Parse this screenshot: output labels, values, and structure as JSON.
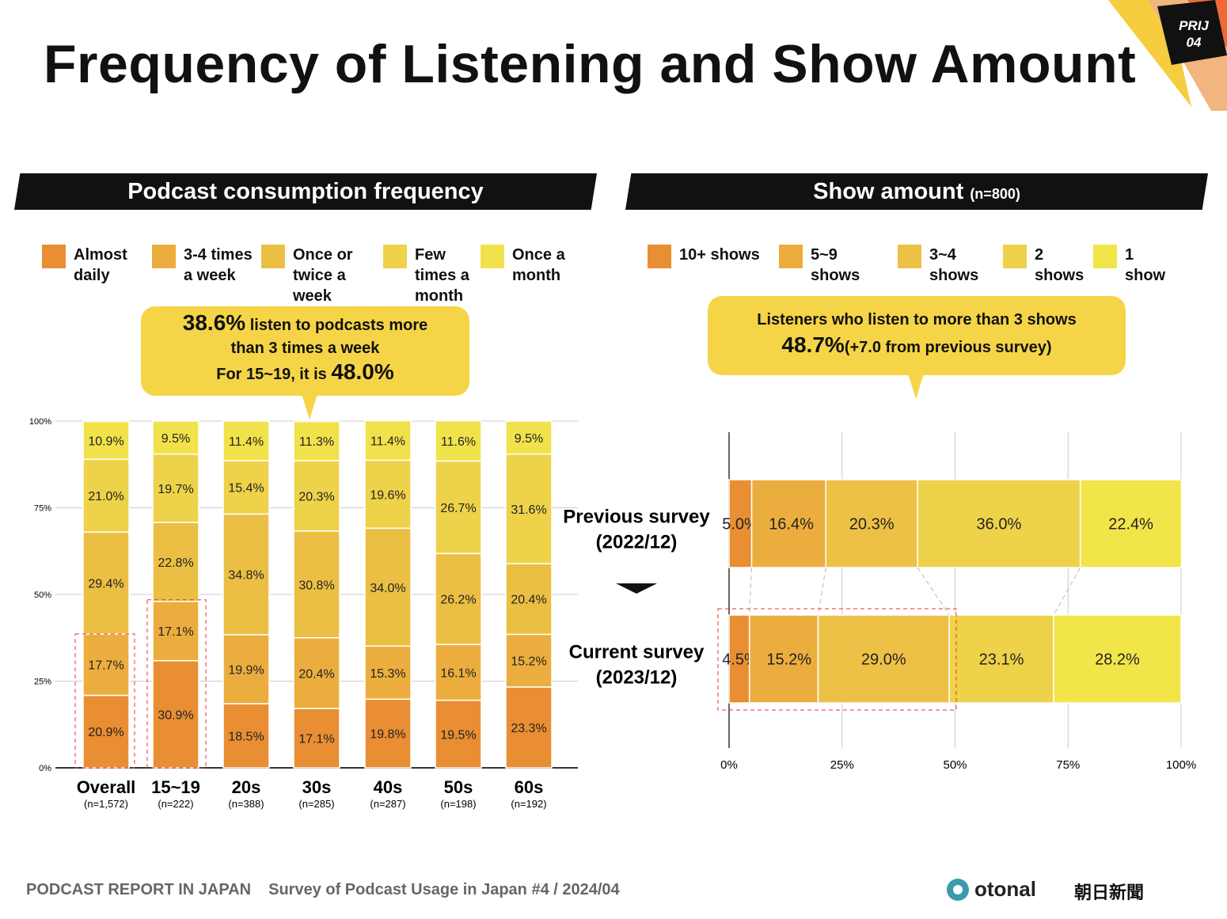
{
  "title": "Frequency of Listening and Show Amount",
  "badge": {
    "line1": "PRIJ",
    "line2": "04"
  },
  "left": {
    "header": "Podcast consumption frequency",
    "callout": {
      "pct1": "38.6%",
      "text1": " listen to podcasts more",
      "text2": "than 3 times a week",
      "text3": "For 15~19, it is ",
      "pct2": "48.0%"
    }
  },
  "right": {
    "header": "Show amount",
    "header_n": "(n=800)",
    "callout": {
      "text1": "Listeners who listen to more than 3 shows",
      "pct": "48.7%",
      "text2": "(+7.0 from previous survey)"
    }
  },
  "chart_data": [
    {
      "type": "bar",
      "stacked": true,
      "orientation": "vertical",
      "ylim": [
        0,
        100
      ],
      "yticks": [
        "0%",
        "25%",
        "50%",
        "75%",
        "100%"
      ],
      "grid": true,
      "legend": "top",
      "categories": [
        "Overall",
        "15~19",
        "20s",
        "30s",
        "40s",
        "50s",
        "60s"
      ],
      "category_n": [
        "(n=1,572)",
        "(n=222)",
        "(n=388)",
        "(n=285)",
        "(n=287)",
        "(n=198)",
        "(n=192)"
      ],
      "series": [
        {
          "name": "Almost daily",
          "color": "#E98E33",
          "values": [
            20.9,
            30.9,
            18.5,
            17.1,
            19.8,
            19.5,
            23.3
          ]
        },
        {
          "name": "3-4 times a week",
          "color": "#EBAE3E",
          "values": [
            17.7,
            17.1,
            19.9,
            20.4,
            15.3,
            16.1,
            15.2
          ]
        },
        {
          "name": "Once or twice a week",
          "color": "#EBBF43",
          "values": [
            29.4,
            22.8,
            34.8,
            30.8,
            34.0,
            26.2,
            20.4
          ]
        },
        {
          "name": "Few times a month",
          "color": "#EDD24A",
          "values": [
            21.0,
            19.7,
            15.4,
            20.3,
            19.6,
            26.7,
            31.6
          ]
        },
        {
          "name": "Once a month",
          "color": "#F1E24B",
          "values": [
            10.9,
            9.5,
            11.4,
            11.3,
            11.4,
            11.6,
            9.5
          ]
        }
      ],
      "highlighted": [
        "Overall",
        "15~19"
      ]
    },
    {
      "type": "bar",
      "stacked": true,
      "orientation": "horizontal",
      "xlim": [
        0,
        100
      ],
      "xticks": [
        "0%",
        "25%",
        "50%",
        "75%",
        "100%"
      ],
      "grid": true,
      "legend": "top",
      "categories": [
        "Previous survey\n(2022/12)",
        "Current survey\n(2023/12)"
      ],
      "category_lines": [
        [
          "Previous survey",
          "(2022/12)"
        ],
        [
          "Current survey",
          "(2023/12)"
        ]
      ],
      "series": [
        {
          "name": "10+ shows",
          "color": "#E98E33",
          "values": [
            5.0,
            4.5
          ]
        },
        {
          "name": "5~9 shows",
          "color": "#EBAE3E",
          "values": [
            16.4,
            15.2
          ]
        },
        {
          "name": "3~4 shows",
          "color": "#EDC046",
          "values": [
            20.3,
            29.0
          ]
        },
        {
          "name": "2 shows",
          "color": "#EDD24A",
          "values": [
            36.0,
            23.1
          ]
        },
        {
          "name": "1 show",
          "color": "#F2E54A",
          "values": [
            22.4,
            28.2
          ]
        }
      ]
    }
  ],
  "left_legend": [
    [
      "Almost",
      "daily"
    ],
    [
      "3-4 times",
      "a week"
    ],
    [
      "Once or",
      "twice a",
      "week"
    ],
    [
      "Few",
      "times a",
      "month"
    ],
    [
      "Once a",
      "month"
    ]
  ],
  "right_legend": [
    [
      "10+ shows"
    ],
    [
      "5~9",
      "shows"
    ],
    [
      "3~4",
      "shows"
    ],
    [
      "2",
      "shows"
    ],
    [
      "1",
      "show"
    ]
  ],
  "footer": {
    "report": "PODCAST REPORT IN JAPAN",
    "survey": "Survey of Podcast Usage in Japan #4 / 2024/04",
    "logo1": "otonal",
    "logo2": "朝日新聞"
  }
}
